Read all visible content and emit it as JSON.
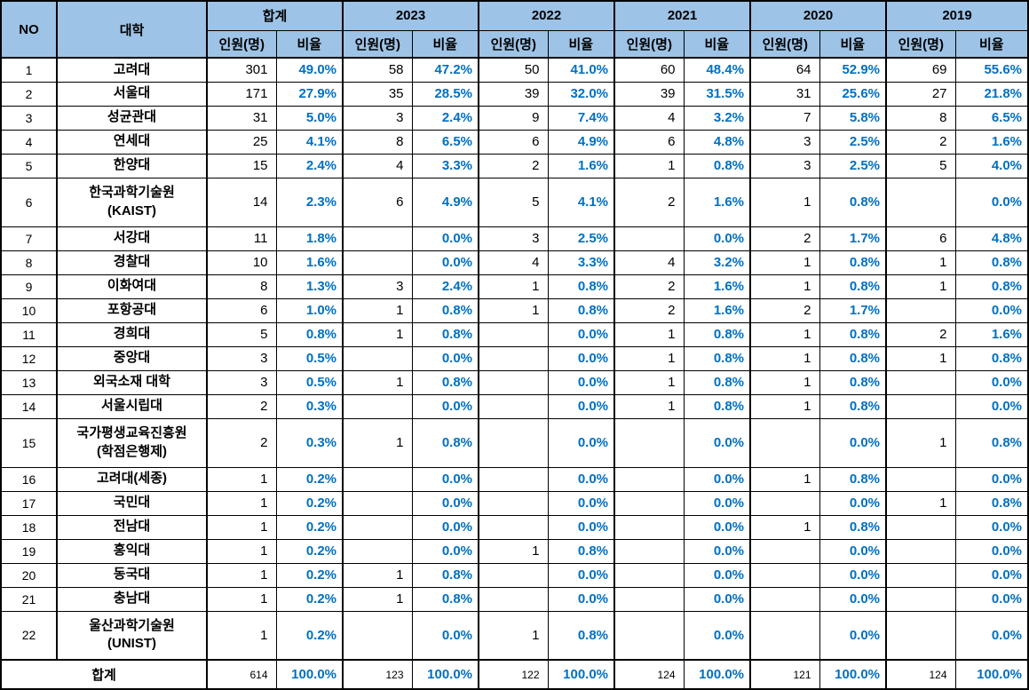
{
  "colors": {
    "header_bg": "#9DC3E6",
    "percent_text": "#0070C0",
    "border": "#000000",
    "count_text": "#000000"
  },
  "chart_data": {
    "type": "table",
    "title": "",
    "header": {
      "no_label": "NO",
      "university_label": "대학",
      "groups": [
        "합계",
        "2023",
        "2022",
        "2021",
        "2020",
        "2019"
      ],
      "count_label": "인원(명)",
      "ratio_label": "비율"
    },
    "rows": [
      {
        "no": "1",
        "university": "고려대",
        "tall": false,
        "values": [
          "301",
          "49.0%",
          "58",
          "47.2%",
          "50",
          "41.0%",
          "60",
          "48.4%",
          "64",
          "52.9%",
          "69",
          "55.6%"
        ]
      },
      {
        "no": "2",
        "university": "서울대",
        "tall": false,
        "values": [
          "171",
          "27.9%",
          "35",
          "28.5%",
          "39",
          "32.0%",
          "39",
          "31.5%",
          "31",
          "25.6%",
          "27",
          "21.8%"
        ]
      },
      {
        "no": "3",
        "university": "성균관대",
        "tall": false,
        "values": [
          "31",
          "5.0%",
          "3",
          "2.4%",
          "9",
          "7.4%",
          "4",
          "3.2%",
          "7",
          "5.8%",
          "8",
          "6.5%"
        ]
      },
      {
        "no": "4",
        "university": "연세대",
        "tall": false,
        "values": [
          "25",
          "4.1%",
          "8",
          "6.5%",
          "6",
          "4.9%",
          "6",
          "4.8%",
          "3",
          "2.5%",
          "2",
          "1.6%"
        ]
      },
      {
        "no": "5",
        "university": "한양대",
        "tall": false,
        "values": [
          "15",
          "2.4%",
          "4",
          "3.3%",
          "2",
          "1.6%",
          "1",
          "0.8%",
          "3",
          "2.5%",
          "5",
          "4.0%"
        ]
      },
      {
        "no": "6",
        "university": "한국과학기술원\n(KAIST)",
        "tall": true,
        "values": [
          "14",
          "2.3%",
          "6",
          "4.9%",
          "5",
          "4.1%",
          "2",
          "1.6%",
          "1",
          "0.8%",
          "",
          "0.0%"
        ]
      },
      {
        "no": "7",
        "university": "서강대",
        "tall": false,
        "values": [
          "11",
          "1.8%",
          "",
          "0.0%",
          "3",
          "2.5%",
          "",
          "0.0%",
          "2",
          "1.7%",
          "6",
          "4.8%"
        ]
      },
      {
        "no": "8",
        "university": "경찰대",
        "tall": false,
        "values": [
          "10",
          "1.6%",
          "",
          "0.0%",
          "4",
          "3.3%",
          "4",
          "3.2%",
          "1",
          "0.8%",
          "1",
          "0.8%"
        ]
      },
      {
        "no": "9",
        "university": "이화여대",
        "tall": false,
        "values": [
          "8",
          "1.3%",
          "3",
          "2.4%",
          "1",
          "0.8%",
          "2",
          "1.6%",
          "1",
          "0.8%",
          "1",
          "0.8%"
        ]
      },
      {
        "no": "10",
        "university": "포항공대",
        "tall": false,
        "values": [
          "6",
          "1.0%",
          "1",
          "0.8%",
          "1",
          "0.8%",
          "2",
          "1.6%",
          "2",
          "1.7%",
          "",
          "0.0%"
        ]
      },
      {
        "no": "11",
        "university": "경희대",
        "tall": false,
        "values": [
          "5",
          "0.8%",
          "1",
          "0.8%",
          "",
          "0.0%",
          "1",
          "0.8%",
          "1",
          "0.8%",
          "2",
          "1.6%"
        ]
      },
      {
        "no": "12",
        "university": "중앙대",
        "tall": false,
        "values": [
          "3",
          "0.5%",
          "",
          "0.0%",
          "",
          "0.0%",
          "1",
          "0.8%",
          "1",
          "0.8%",
          "1",
          "0.8%"
        ]
      },
      {
        "no": "13",
        "university": "외국소재 대학",
        "tall": false,
        "values": [
          "3",
          "0.5%",
          "1",
          "0.8%",
          "",
          "0.0%",
          "1",
          "0.8%",
          "1",
          "0.8%",
          "",
          "0.0%"
        ]
      },
      {
        "no": "14",
        "university": "서울시립대",
        "tall": false,
        "values": [
          "2",
          "0.3%",
          "",
          "0.0%",
          "",
          "0.0%",
          "1",
          "0.8%",
          "1",
          "0.8%",
          "",
          "0.0%"
        ]
      },
      {
        "no": "15",
        "university": "국가평생교육진흥원\n(학점은행제)",
        "tall": true,
        "values": [
          "2",
          "0.3%",
          "1",
          "0.8%",
          "",
          "0.0%",
          "",
          "0.0%",
          "",
          "0.0%",
          "1",
          "0.8%"
        ]
      },
      {
        "no": "16",
        "university": "고려대(세종)",
        "tall": false,
        "values": [
          "1",
          "0.2%",
          "",
          "0.0%",
          "",
          "0.0%",
          "",
          "0.0%",
          "1",
          "0.8%",
          "",
          "0.0%"
        ]
      },
      {
        "no": "17",
        "university": "국민대",
        "tall": false,
        "values": [
          "1",
          "0.2%",
          "",
          "0.0%",
          "",
          "0.0%",
          "",
          "0.0%",
          "",
          "0.0%",
          "1",
          "0.8%"
        ]
      },
      {
        "no": "18",
        "university": "전남대",
        "tall": false,
        "values": [
          "1",
          "0.2%",
          "",
          "0.0%",
          "",
          "0.0%",
          "",
          "0.0%",
          "1",
          "0.8%",
          "",
          "0.0%"
        ]
      },
      {
        "no": "19",
        "university": "홍익대",
        "tall": false,
        "values": [
          "1",
          "0.2%",
          "",
          "0.0%",
          "1",
          "0.8%",
          "",
          "0.0%",
          "",
          "0.0%",
          "",
          "0.0%"
        ]
      },
      {
        "no": "20",
        "university": "동국대",
        "tall": false,
        "values": [
          "1",
          "0.2%",
          "1",
          "0.8%",
          "",
          "0.0%",
          "",
          "0.0%",
          "",
          "0.0%",
          "",
          "0.0%"
        ]
      },
      {
        "no": "21",
        "university": "충남대",
        "tall": false,
        "values": [
          "1",
          "0.2%",
          "1",
          "0.8%",
          "",
          "0.0%",
          "",
          "0.0%",
          "",
          "0.0%",
          "",
          "0.0%"
        ]
      },
      {
        "no": "22",
        "university": "울산과학기술원\n(UNIST)",
        "tall": true,
        "values": [
          "1",
          "0.2%",
          "",
          "0.0%",
          "1",
          "0.8%",
          "",
          "0.0%",
          "",
          "0.0%",
          "",
          "0.0%"
        ]
      }
    ],
    "total": {
      "label": "합계",
      "values": [
        "614",
        "100.0%",
        "123",
        "100.0%",
        "122",
        "100.0%",
        "124",
        "100.0%",
        "121",
        "100.0%",
        "124",
        "100.0%"
      ]
    }
  }
}
